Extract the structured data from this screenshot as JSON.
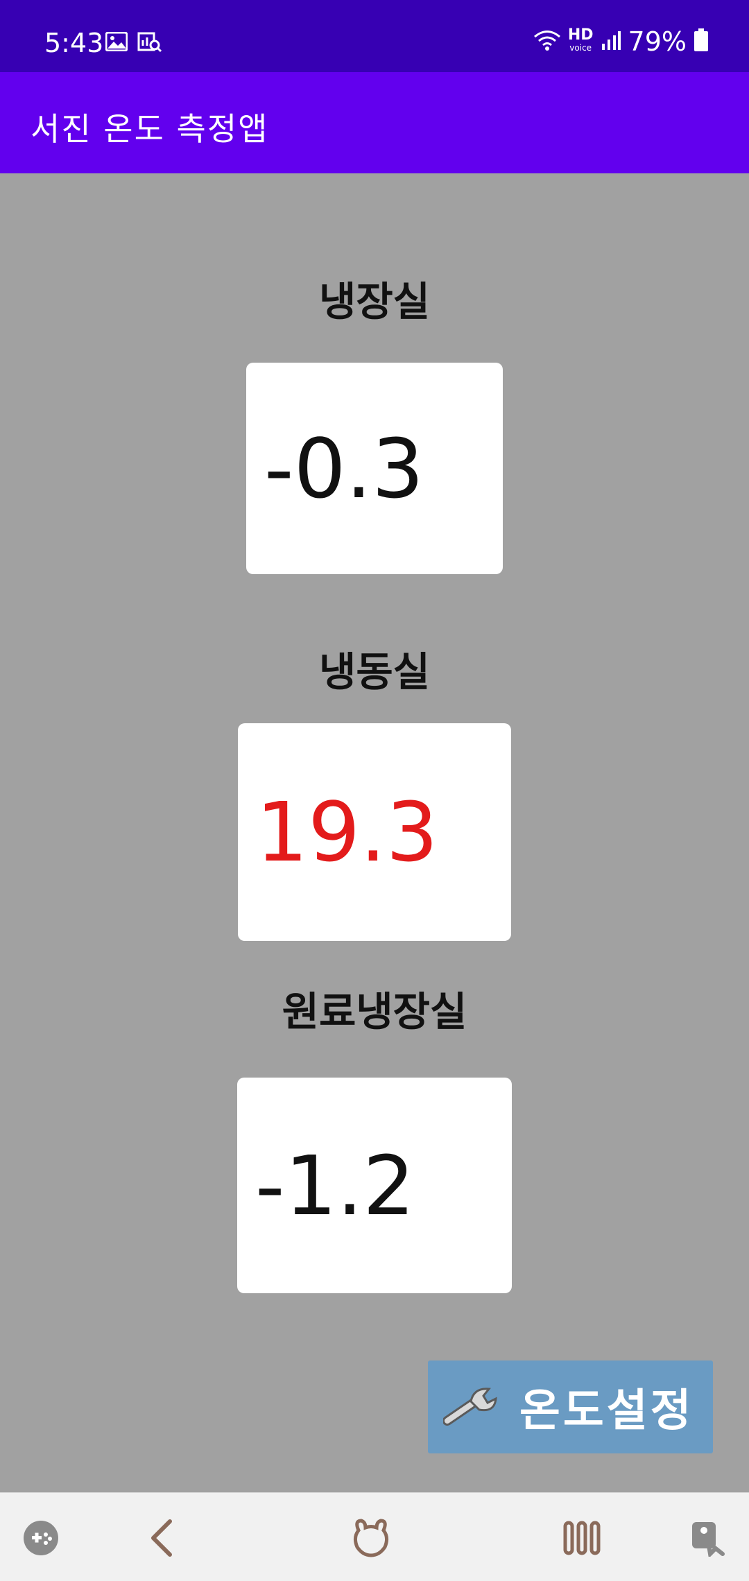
{
  "status_bar": {
    "time": "5:43",
    "battery_percent": "79%",
    "hd_label": "HD",
    "voice_label": "voice",
    "icons": [
      "gallery-icon",
      "scan-search-icon",
      "wifi-icon",
      "signal-icon",
      "battery-icon"
    ]
  },
  "app_bar": {
    "title": "서진 온도 측정앱"
  },
  "sections": [
    {
      "label": "냉장실",
      "value": "-0.3"
    },
    {
      "label": "냉동실",
      "value": "19.3"
    },
    {
      "label": "원료냉장실",
      "value": "-1.2"
    }
  ],
  "settings_button": {
    "label": "온도설정",
    "icon": "wrench-icon"
  },
  "nav_bar": {
    "items": [
      "game-launcher-icon",
      "back-icon",
      "home-icon",
      "recents-icon",
      "accessibility-icon"
    ]
  },
  "colors": {
    "status_bar": "#3700b3",
    "app_bar": "#6200ee",
    "background": "#a1a1a1",
    "alert_value": "#e31b1b",
    "button": "#6a9bc3"
  }
}
